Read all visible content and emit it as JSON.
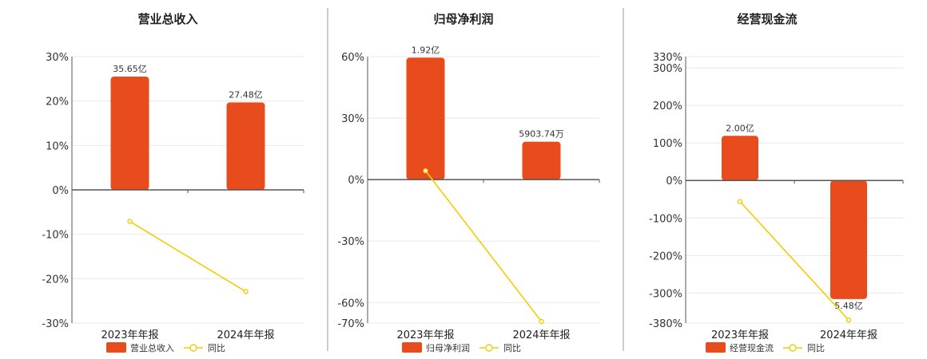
{
  "colors": {
    "bar": "#e84c1c",
    "line": "#f5cc00",
    "grid": "#e8e8e8",
    "axis": "#555555",
    "separator": "#999999"
  },
  "chart_data": [
    {
      "type": "bar",
      "title": "营业总收入",
      "categories": [
        "2023年年报",
        "2024年年报"
      ],
      "ylim": [
        -30,
        30
      ],
      "yticks": [
        30,
        20,
        10,
        0,
        -10,
        -20,
        -30
      ],
      "tick_labels": [
        "30%",
        "20%",
        "10%",
        "0%",
        "-10%",
        "-20%",
        "-30%"
      ],
      "series": [
        {
          "name": "营业总收入",
          "kind": "bar",
          "values": [
            25.5,
            19.7
          ],
          "labels": [
            "35.65亿",
            "27.48亿"
          ]
        },
        {
          "name": "同比",
          "kind": "line",
          "values": [
            -7.1,
            -22.9
          ]
        }
      ],
      "grid": true,
      "legend": "bottom"
    },
    {
      "type": "bar",
      "title": "归母净利润",
      "categories": [
        "2023年年报",
        "2024年年报"
      ],
      "ylim": [
        -70,
        60
      ],
      "yticks": [
        60,
        30,
        0,
        -30,
        -60,
        -70
      ],
      "tick_labels": [
        "60%",
        "30%",
        "0%",
        "-30%",
        "-60%",
        "-70%"
      ],
      "series": [
        {
          "name": "归母净利润",
          "kind": "bar",
          "values": [
            59.5,
            18.5
          ],
          "labels": [
            "1.92亿",
            "5903.74万"
          ]
        },
        {
          "name": "同比",
          "kind": "line",
          "values": [
            4.3,
            -69.2
          ]
        }
      ],
      "grid": true,
      "legend": "bottom"
    },
    {
      "type": "bar",
      "title": "经营现金流",
      "categories": [
        "2023年年报",
        "2024年年报"
      ],
      "ylim": [
        -380,
        330
      ],
      "yticks": [
        330,
        300,
        200,
        100,
        0,
        -100,
        -200,
        -300,
        -380
      ],
      "tick_labels": [
        "330%",
        "300%",
        "200%",
        "100%",
        "0%",
        "-100%",
        "-200%",
        "-300%",
        "-380%"
      ],
      "series": [
        {
          "name": "经营现金流",
          "kind": "bar",
          "values": [
            119,
            -316
          ],
          "labels": [
            "2.00亿",
            "5.48亿"
          ]
        },
        {
          "name": "同比",
          "kind": "line",
          "values": [
            -56,
            -372
          ]
        }
      ],
      "grid": true,
      "legend": "bottom"
    }
  ]
}
